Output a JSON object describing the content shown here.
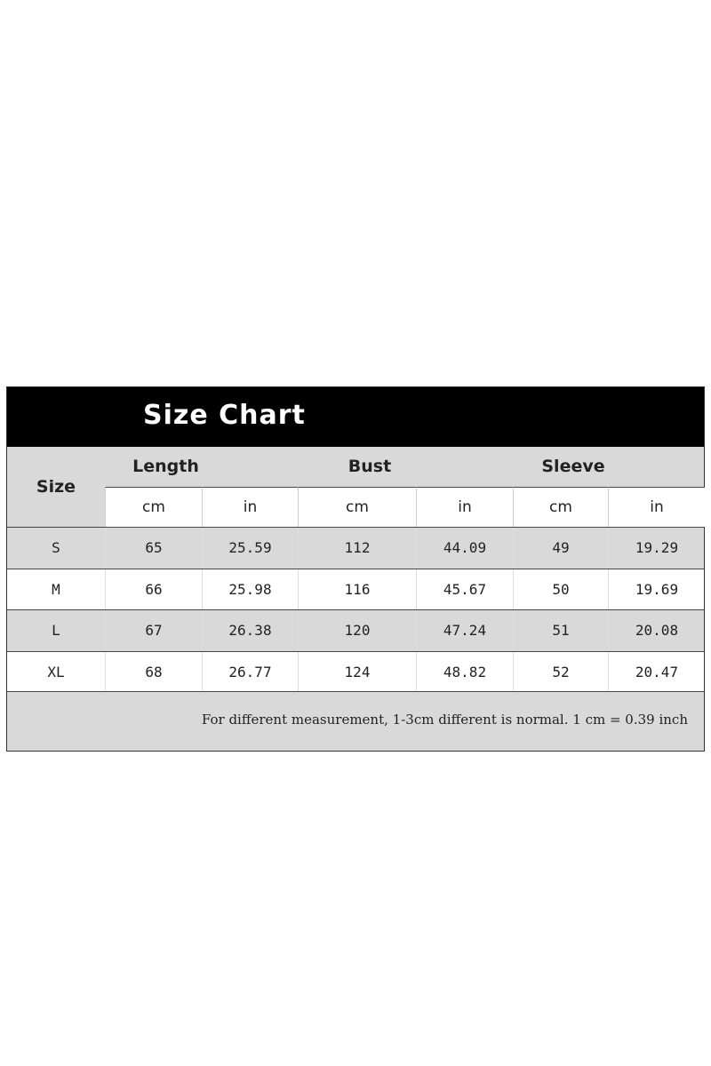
{
  "title": "Size Chart",
  "header": {
    "size_label": "Size",
    "groups": [
      "Length",
      "Bust",
      "Sleeve"
    ],
    "units": [
      "cm",
      "in",
      "cm",
      "in",
      "cm",
      "in"
    ]
  },
  "rows": [
    {
      "size": "S",
      "values": [
        "65",
        "25.59",
        "112",
        "44.09",
        "49",
        "19.29"
      ]
    },
    {
      "size": "M",
      "values": [
        "66",
        "25.98",
        "116",
        "45.67",
        "50",
        "19.69"
      ]
    },
    {
      "size": "L",
      "values": [
        "67",
        "26.38",
        "120",
        "47.24",
        "51",
        "20.08"
      ]
    },
    {
      "size": "XL",
      "values": [
        "68",
        "26.77",
        "124",
        "48.82",
        "52",
        "20.47"
      ]
    }
  ],
  "note": "For different measurement, 1-3cm different is normal. 1 cm = 0.39 inch",
  "colors": {
    "title_bg": "#000000",
    "row_gray": "#d9d9d9",
    "row_white": "#ffffff"
  }
}
